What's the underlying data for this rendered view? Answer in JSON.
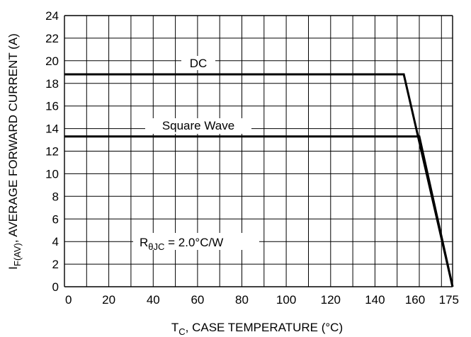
{
  "chart_data": {
    "type": "line",
    "xlabel": {
      "main": "T",
      "sub": "C",
      "rest": ", CASE TEMPERATURE (°C)"
    },
    "ylabel": {
      "main": "I",
      "sub": "F(AV)",
      "rest": ", AVERAGE FORWARD CURRENT (A)"
    },
    "xlim": [
      0,
      175
    ],
    "ylim": [
      0,
      24
    ],
    "x_ticks": [
      0,
      20,
      40,
      60,
      80,
      100,
      120,
      140,
      160,
      175
    ],
    "x_grid": [
      0,
      10,
      20,
      30,
      40,
      50,
      60,
      70,
      80,
      90,
      100,
      110,
      120,
      130,
      140,
      150,
      160,
      170,
      175
    ],
    "y_ticks": [
      0,
      2,
      4,
      6,
      8,
      10,
      12,
      14,
      16,
      18,
      20,
      22,
      24
    ],
    "grid": true,
    "series": [
      {
        "name": "DC",
        "x": [
          0,
          153,
          175
        ],
        "y": [
          18.8,
          18.8,
          0
        ]
      },
      {
        "name": "Square Wave",
        "x": [
          0,
          160,
          175
        ],
        "y": [
          13.3,
          13.3,
          0
        ]
      }
    ],
    "annotations": {
      "dc": "DC",
      "square": "Square Wave",
      "rth": {
        "main": "R",
        "sub": "θJC",
        "rest": " = 2.0°C/W"
      }
    }
  }
}
